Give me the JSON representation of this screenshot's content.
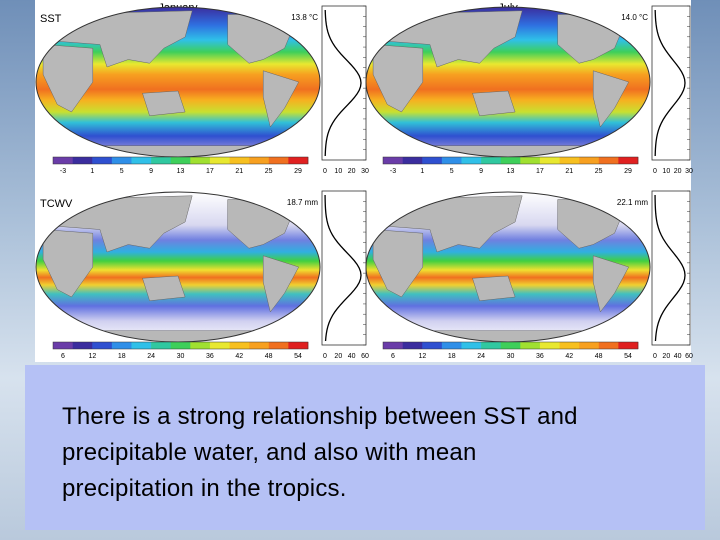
{
  "columns": [
    "January",
    "July"
  ],
  "rows": [
    {
      "label": "SST",
      "means": [
        "13.8 °C",
        "14.0 °C"
      ],
      "colorbar": [
        -3,
        1,
        5,
        9,
        13,
        17,
        21,
        25,
        29
      ],
      "profile_axis": [
        "0",
        "10",
        "20",
        "30"
      ]
    },
    {
      "label": "TCWV",
      "means": [
        "18.7 mm",
        "22.1 mm"
      ],
      "colorbar": [
        6,
        12,
        18,
        24,
        30,
        36,
        42,
        48,
        54
      ],
      "profile_axis": [
        "0",
        "20",
        "40",
        "60"
      ]
    }
  ],
  "caption": [
    "There is a strong relationship between SST and",
    "precipitable water, and also with mean",
    "precipitation in the tropics."
  ]
}
